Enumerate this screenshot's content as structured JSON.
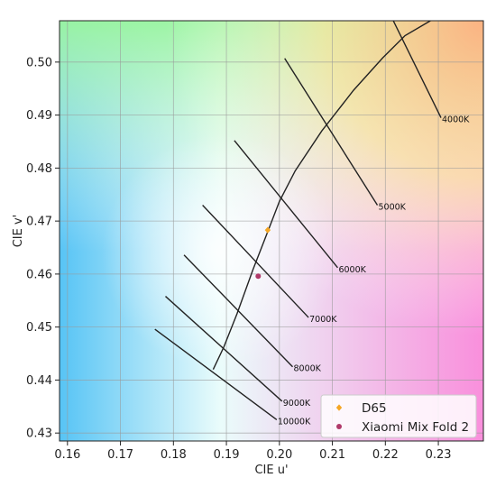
{
  "chart_data": {
    "type": "scatter",
    "xlabel": "CIE u'",
    "ylabel": "CIE v'",
    "xlim": [
      0.1585,
      0.2385
    ],
    "ylim": [
      0.4285,
      0.5078
    ],
    "x_ticks": [
      "0.16",
      "0.17",
      "0.18",
      "0.19",
      "0.20",
      "0.21",
      "0.22",
      "0.23"
    ],
    "x_tick_values": [
      0.16,
      0.17,
      0.18,
      0.19,
      0.2,
      0.21,
      0.22,
      0.23
    ],
    "y_ticks": [
      "0.43",
      "0.44",
      "0.45",
      "0.46",
      "0.47",
      "0.48",
      "0.49",
      "0.50"
    ],
    "y_tick_values": [
      0.43,
      0.44,
      0.45,
      0.46,
      0.47,
      0.48,
      0.49,
      0.5
    ],
    "grid": true,
    "background": "CIE 1976 u'v' chromaticity color fill",
    "planckian_locus": [
      [
        0.2285,
        0.5078
      ],
      [
        0.2237,
        0.505
      ],
      [
        0.2195,
        0.5008
      ],
      [
        0.214,
        0.4947
      ],
      [
        0.208,
        0.487
      ],
      [
        0.203,
        0.4795
      ],
      [
        0.2,
        0.4737
      ],
      [
        0.1978,
        0.468
      ],
      [
        0.195,
        0.4608
      ],
      [
        0.192,
        0.4525
      ],
      [
        0.1895,
        0.4462
      ],
      [
        0.1875,
        0.442
      ]
    ],
    "isotherms": [
      {
        "label": "4000K",
        "x": [
          0.2215,
          0.2305
        ],
        "y": [
          0.5078,
          0.4895
        ]
      },
      {
        "label": "5000K",
        "x": [
          0.201,
          0.2185
        ],
        "y": [
          0.5007,
          0.473
        ]
      },
      {
        "label": "6000K",
        "x": [
          0.1915,
          0.211
        ],
        "y": [
          0.4852,
          0.4612
        ]
      },
      {
        "label": "7000K",
        "x": [
          0.1855,
          0.2055
        ],
        "y": [
          0.473,
          0.4518
        ]
      },
      {
        "label": "8000K",
        "x": [
          0.182,
          0.2025
        ],
        "y": [
          0.4636,
          0.4425
        ]
      },
      {
        "label": "9000K",
        "x": [
          0.1785,
          0.2005
        ],
        "y": [
          0.4558,
          0.436
        ]
      },
      {
        "label": "10000K",
        "x": [
          0.1765,
          0.1995
        ],
        "y": [
          0.4496,
          0.4325
        ]
      }
    ],
    "series": [
      {
        "name": "D65",
        "marker": "diamond",
        "color": "#f5a623",
        "points": [
          [
            0.1978,
            0.4683
          ]
        ]
      },
      {
        "name": "Xiaomi Mix Fold 2",
        "marker": "circle",
        "color": "#b03a6a",
        "points": [
          [
            0.196,
            0.4596
          ]
        ]
      }
    ],
    "legend_position": "bottom-right"
  }
}
